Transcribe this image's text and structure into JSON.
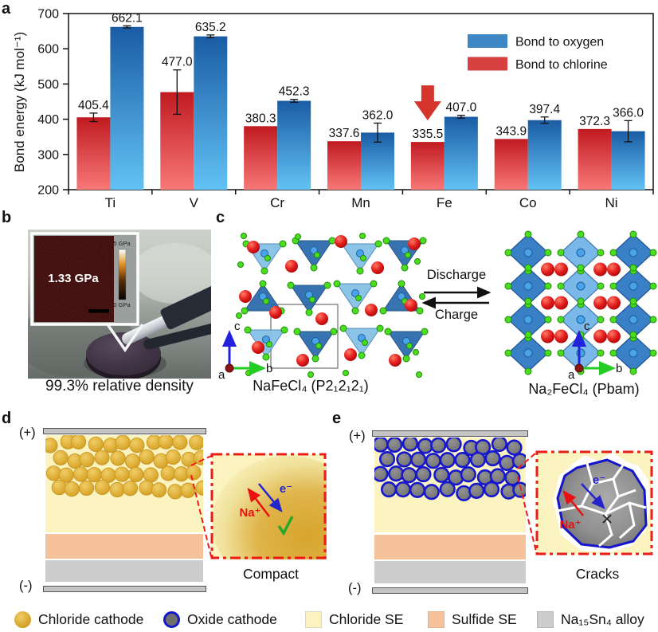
{
  "chart_data": {
    "type": "bar",
    "panel": "a",
    "title": "",
    "xlabel": "",
    "ylabel": "Bond energy (kJ mol⁻¹)",
    "categories": [
      "Ti",
      "V",
      "Cr",
      "Mn",
      "Fe",
      "Co",
      "Ni"
    ],
    "series": [
      {
        "name": "Bond to chlorine",
        "values": [
          405.4,
          477.0,
          380.3,
          337.6,
          335.5,
          343.9,
          372.3
        ],
        "errors": [
          12,
          63,
          0,
          0,
          0,
          0,
          0
        ],
        "bar_top_color": "#c01a20",
        "bar_bottom_color": "#f87878",
        "legend_color": "#d84040"
      },
      {
        "name": "Bond to oxygen",
        "values": [
          662.1,
          635.2,
          452.3,
          362.0,
          407.0,
          397.4,
          366.0
        ],
        "errors": [
          3,
          4,
          4,
          27,
          4,
          9,
          30
        ],
        "bar_top_color": "#1a5ca4",
        "bar_bottom_color": "#62c2f4",
        "legend_color": "#3c87c4"
      }
    ],
    "legend_order": [
      1,
      0
    ],
    "ylim": [
      200,
      700
    ],
    "yticks": [
      200,
      300,
      400,
      500,
      600,
      700
    ],
    "grid": false,
    "legend_position": "top-right",
    "annotation": {
      "type": "down-arrow",
      "category": "Fe",
      "series": "Bond to chlorine",
      "color": "#d5352c"
    }
  },
  "panels": {
    "a": {
      "label": "a"
    },
    "b": {
      "label": "b",
      "inset_value": "1.33 GPa",
      "scale_top": "5 GPa",
      "scale_bottom": "0 GPa",
      "caption": "99.3% relative density"
    },
    "c": {
      "label": "c",
      "left_formula": "NaFeCl₄ (P2₁2₁2₁)",
      "right_formula": "Na₂FeCl₄ (Pbam)",
      "discharge": "Discharge",
      "charge": "Charge",
      "axis": {
        "a": "a",
        "b": "b",
        "c": "c"
      },
      "colors": {
        "tetra_light": "#85c1e5",
        "tetra_light_stroke": "#4a88b8",
        "tetra_dark": "#2d6cac",
        "tetra_dark_stroke": "#1c4c80",
        "octa_light": "#79b8e8",
        "octa_light_stroke": "#3f7ab0",
        "octa_dark": "#3a80c6",
        "octa_dark_stroke": "#1e5596",
        "na_red_hi": "#ff7a66",
        "na_red": "#e32020",
        "na_red_dk": "#b00606",
        "cl_green": "#4ade1e",
        "cl_green_stroke": "#1f8a0c",
        "fe_blue": "#4aa3e8",
        "fe_blue_stroke": "#1c5fa0",
        "axis_c_arrow": "#2222dd",
        "axis_b_arrow": "#22cc22",
        "axis_a_dot": "#8b1515",
        "unit_cell": "#8a8a8a"
      }
    },
    "d": {
      "label": "d",
      "plus": "(+)",
      "minus": "(-)",
      "caption": "Compact",
      "na_label": "Na⁺",
      "e_label": "e⁻"
    },
    "e": {
      "label": "e",
      "plus": "(+)",
      "minus": "(-)",
      "caption": "Cracks",
      "na_label": "Na⁺",
      "e_label": "e⁻"
    }
  },
  "materials": {
    "chloride_cathode_center": "#f0cd68",
    "chloride_cathode_mid": "#e0b23c",
    "chloride_cathode_edge": "#cf9a1e",
    "chloride_cathode_stroke": "#c8941c",
    "oxide_fill_center": "#929292",
    "oxide_fill_edge": "#6f6f6f",
    "oxide_ring": "#1717cd",
    "chloride_se": "#fbf4c0",
    "sulfide_se": "#f6c29b",
    "alloy": "#cdcdcd",
    "electrode": "#c4c4c4",
    "inset_border_red": "#ee1c16",
    "ion_red": "#e81010",
    "electron_blue": "#2424cc",
    "check_green": "#28a828"
  },
  "bottom_legend": {
    "items": [
      {
        "label": "Chloride cathode",
        "swatch": "chloride-cathode"
      },
      {
        "label": "Oxide cathode",
        "swatch": "oxide-cathode"
      },
      {
        "label": "Chloride SE",
        "swatch": "chloride-se"
      },
      {
        "label": "Sulfide SE",
        "swatch": "sulfide-se"
      },
      {
        "label": "Na₁₅Sn₄ alloy",
        "swatch": "alloy"
      }
    ]
  }
}
